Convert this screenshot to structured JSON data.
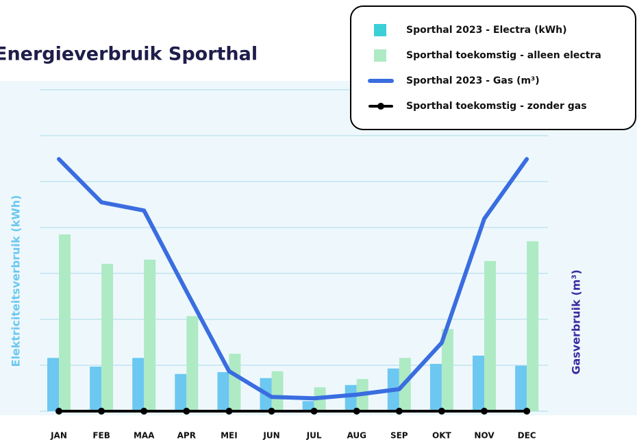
{
  "chart_data": {
    "type": "bar_line",
    "title": "Energieverbruik Sporthal",
    "ylabel": "Elektriciteitsverbruik (kWh)",
    "y2label": "Gasverbruik (m³)",
    "categories": [
      "JAN",
      "FEB",
      "MAA",
      "APR",
      "MEI",
      "JUN",
      "JUL",
      "AUG",
      "SEP",
      "OKT",
      "NOV",
      "DEC"
    ],
    "ylim": [
      0,
      7
    ],
    "yticks": [
      0,
      1,
      2,
      3,
      4,
      5,
      6,
      7
    ],
    "y2lim": [
      0,
      7
    ],
    "grid": true,
    "legend": "top-right",
    "series": [
      {
        "name": "Sporthal 2023 - Electra (kWh)",
        "kind": "bar",
        "color": "#6cc8f0",
        "legend_color": "#3ccfd6",
        "values": [
          1.16,
          0.97,
          1.16,
          0.81,
          0.85,
          0.72,
          0.22,
          0.57,
          0.93,
          1.03,
          1.21,
          0.99
        ]
      },
      {
        "name": "Sporthal toekomstig - alleen electra",
        "kind": "bar",
        "color": "#aeeac4",
        "values": [
          3.85,
          3.21,
          3.3,
          2.07,
          1.25,
          0.87,
          0.52,
          0.7,
          1.16,
          1.79,
          3.27,
          3.7
        ]
      },
      {
        "name": "Sporthal 2023 - Gas (m³)",
        "kind": "line",
        "axis": "y2",
        "color": "#3a6de0",
        "values": [
          5.49,
          4.55,
          4.37,
          2.61,
          0.87,
          0.31,
          0.28,
          0.36,
          0.48,
          1.49,
          4.19,
          5.49
        ]
      },
      {
        "name": "Sporthal toekomstig - zonder gas",
        "kind": "line",
        "axis": "y2",
        "color": "#000000",
        "markers": true,
        "values": [
          0,
          0,
          0,
          0,
          0,
          0,
          0,
          0,
          0,
          0,
          0,
          0
        ]
      }
    ]
  }
}
